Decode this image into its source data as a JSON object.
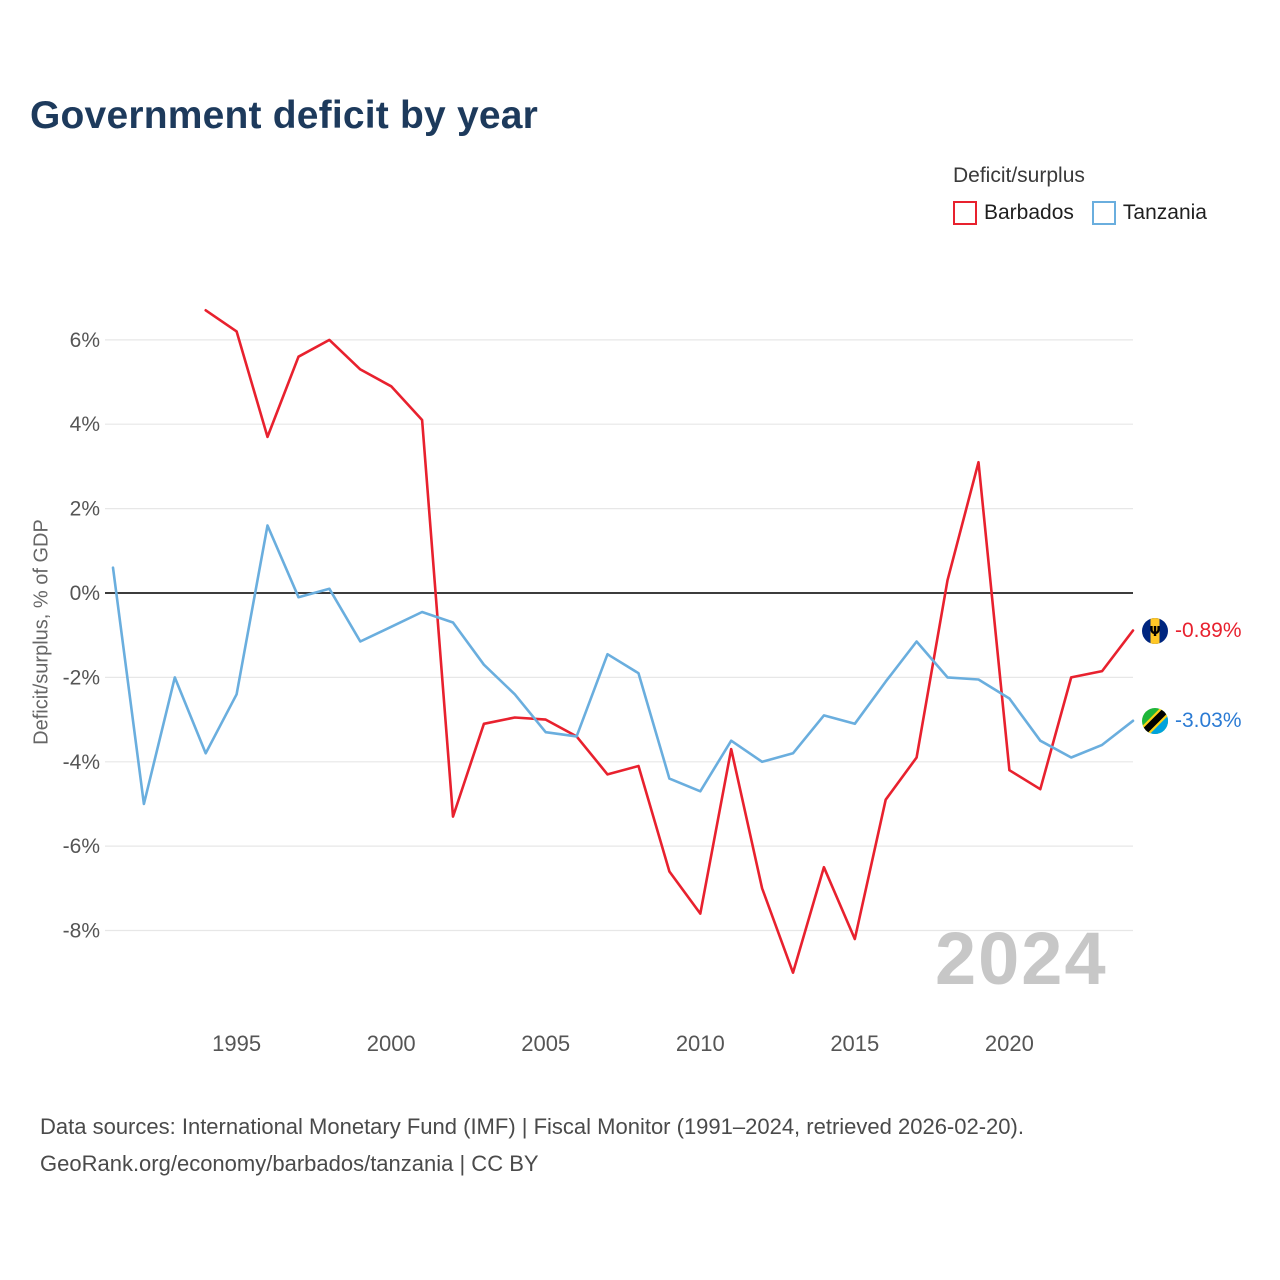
{
  "title": "Government deficit by year",
  "legend": {
    "title": "Deficit/surplus",
    "items": [
      {
        "label": "Barbados",
        "color": "#e8212e"
      },
      {
        "label": "Tanzania",
        "color": "#6aaede"
      }
    ]
  },
  "watermark": "2024",
  "end_labels": {
    "barbados": "-0.89%",
    "tanzania": "-3.03%"
  },
  "footer": {
    "line1": "Data sources: International Monetary Fund (IMF) | Fiscal Monitor (1991–2024, retrieved 2026-02-20).",
    "line2": "GeoRank.org/economy/barbados/tanzania | CC BY"
  },
  "chart_data": {
    "type": "line",
    "title": "Government deficit by year",
    "xlabel": "",
    "ylabel": "Deficit/surplus, % of GDP",
    "x": [
      1991,
      1992,
      1993,
      1994,
      1995,
      1996,
      1997,
      1998,
      1999,
      2000,
      2001,
      2002,
      2003,
      2004,
      2005,
      2006,
      2007,
      2008,
      2009,
      2010,
      2011,
      2012,
      2013,
      2014,
      2015,
      2016,
      2017,
      2018,
      2019,
      2020,
      2021,
      2022,
      2023,
      2024
    ],
    "xticks": [
      1995,
      2000,
      2005,
      2010,
      2015,
      2020
    ],
    "yticks": [
      6,
      4,
      2,
      0,
      -2,
      -4,
      -6,
      -8
    ],
    "ylim": [
      -9.6,
      7.2
    ],
    "grid": true,
    "legend_position": "top-right",
    "series": [
      {
        "name": "Barbados",
        "color": "#e8212e",
        "values": [
          null,
          null,
          null,
          6.7,
          6.2,
          3.7,
          5.6,
          6.0,
          5.3,
          4.9,
          4.1,
          -5.3,
          -3.1,
          -2.95,
          -3.0,
          -3.4,
          -4.3,
          -4.1,
          -6.6,
          -7.6,
          -3.7,
          -7.0,
          -9.0,
          -6.5,
          -8.2,
          -4.9,
          -3.9,
          0.3,
          3.1,
          -4.2,
          -4.65,
          -2.0,
          -1.85,
          -0.89
        ]
      },
      {
        "name": "Tanzania",
        "color": "#6aaede",
        "values": [
          0.6,
          -5.0,
          -2.0,
          -3.8,
          -2.4,
          1.6,
          -0.1,
          0.1,
          -1.15,
          -0.8,
          -0.45,
          -0.7,
          -1.7,
          -2.4,
          -3.3,
          -3.4,
          -1.45,
          -1.9,
          -4.4,
          -4.7,
          -3.5,
          -4.0,
          -3.8,
          -2.9,
          -3.1,
          -2.1,
          -1.15,
          -2.0,
          -2.05,
          -2.5,
          -3.5,
          -3.9,
          -3.6,
          -3.03
        ]
      }
    ]
  }
}
